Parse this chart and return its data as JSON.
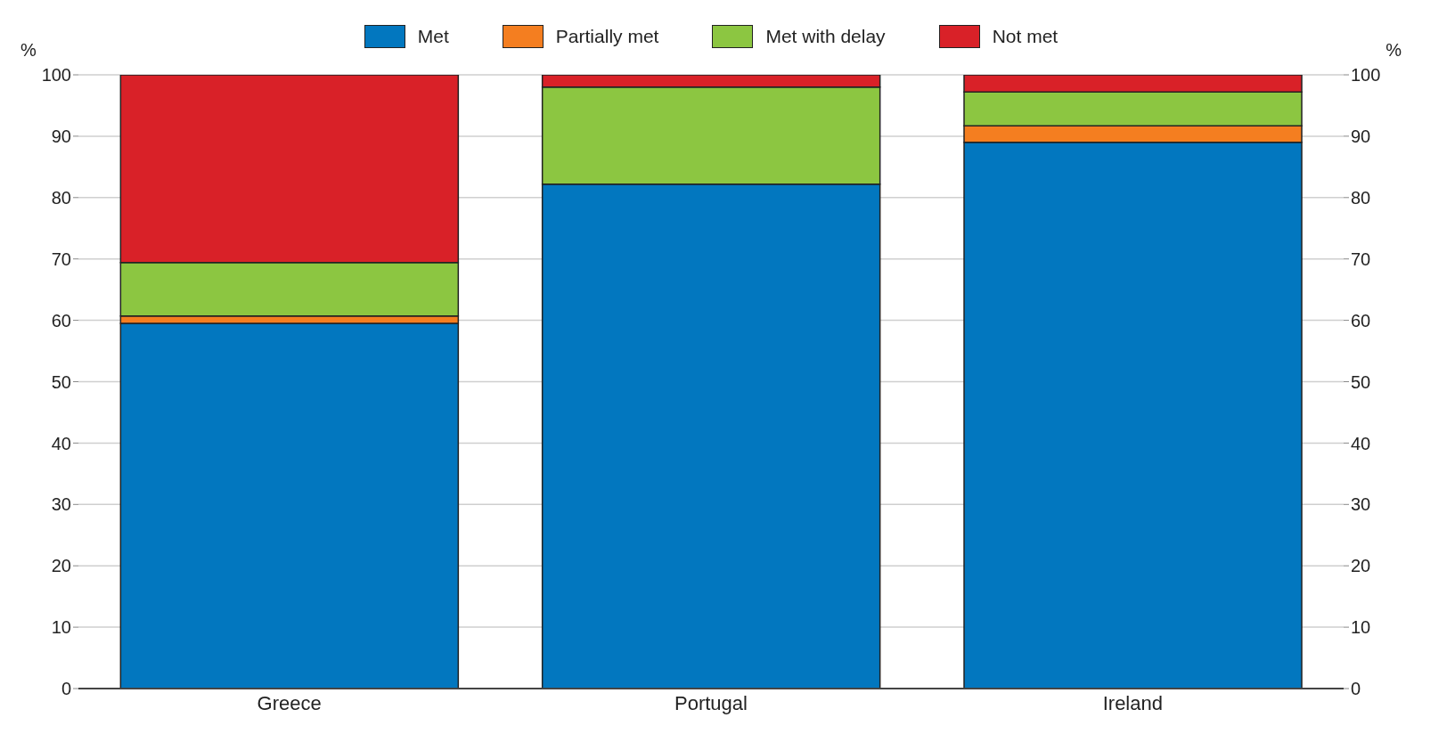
{
  "chart_data": {
    "type": "bar",
    "stacked": true,
    "categories": [
      "Greece",
      "Portugal",
      "Ireland"
    ],
    "series": [
      {
        "name": "Met",
        "color": "#0277bf",
        "values": [
          59.5,
          82.2,
          89.0
        ]
      },
      {
        "name": "Partially met",
        "color": "#f47e20",
        "values": [
          1.2,
          0,
          2.7
        ]
      },
      {
        "name": "Met with delay",
        "color": "#8cc641",
        "values": [
          8.7,
          15.8,
          5.5
        ]
      },
      {
        "name": "Not met",
        "color": "#d92128",
        "values": [
          30.6,
          2.0,
          2.8
        ]
      }
    ],
    "ylabel": "%",
    "y2label": "%",
    "ylim": [
      0,
      100
    ],
    "yticks": [
      0,
      10,
      20,
      30,
      40,
      50,
      60,
      70,
      80,
      90,
      100
    ],
    "y2lim": [
      0,
      100
    ],
    "y2ticks": [
      0,
      10,
      20,
      30,
      40,
      50,
      60,
      70,
      80,
      90,
      100
    ],
    "grid": "y",
    "legend": "top"
  }
}
